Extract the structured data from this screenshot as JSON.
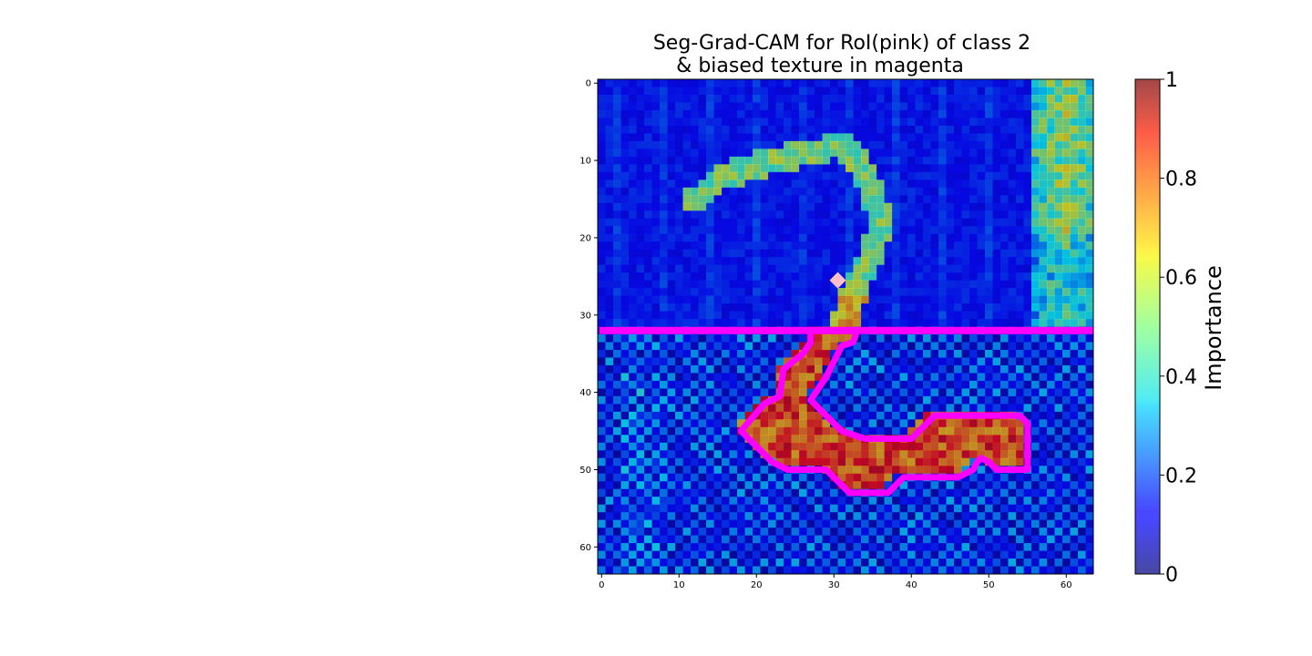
{
  "chart_data": {
    "type": "heatmap",
    "title_line1": "Seg-Grad-CAM for RoI(pink) of class 2",
    "title_line2": "& biased texture in magenta",
    "x_ticks": [
      0,
      10,
      20,
      30,
      40,
      50,
      60
    ],
    "y_ticks": [
      0,
      10,
      20,
      30,
      40,
      50,
      60
    ],
    "xlim": [
      -0.5,
      63.5
    ],
    "ylim": [
      63.5,
      -0.5
    ],
    "grid_size": 64,
    "colorbar": {
      "label": "Importance",
      "range": [
        0,
        1
      ],
      "ticks": [
        0,
        0.2,
        0.4,
        0.6,
        0.8,
        1
      ],
      "tick_labels": [
        "0",
        "0.2",
        "0.4",
        "0.6",
        "0.8",
        "1"
      ],
      "colormap": "jet"
    },
    "biased_texture_boundary_row": 32,
    "roi_marker": {
      "x": 30.5,
      "y": 25.5,
      "shape": "diamond",
      "color": "#ffc0cb"
    },
    "roi_outline_color": "#ff00ff",
    "roi_outline": [
      [
        27,
        32
      ],
      [
        27,
        33.5
      ],
      [
        26,
        35
      ],
      [
        23.5,
        37
      ],
      [
        23,
        40.5
      ],
      [
        21,
        41.5
      ],
      [
        18,
        45
      ],
      [
        22,
        49
      ],
      [
        24,
        50
      ],
      [
        29,
        50
      ],
      [
        32,
        53
      ],
      [
        37,
        53
      ],
      [
        39,
        51
      ],
      [
        46,
        51
      ],
      [
        48,
        50
      ],
      [
        48.5,
        49
      ],
      [
        49,
        48.5
      ],
      [
        50,
        49
      ],
      [
        51,
        50
      ],
      [
        55,
        50
      ],
      [
        55,
        44
      ],
      [
        54,
        43
      ],
      [
        43,
        43
      ],
      [
        42,
        44
      ],
      [
        40,
        46
      ],
      [
        34,
        46
      ],
      [
        31,
        45
      ],
      [
        29,
        43
      ],
      [
        27,
        41
      ],
      [
        29,
        38
      ],
      [
        30,
        36
      ],
      [
        31,
        34
      ],
      [
        32.5,
        33.5
      ],
      [
        33,
        32
      ]
    ]
  }
}
